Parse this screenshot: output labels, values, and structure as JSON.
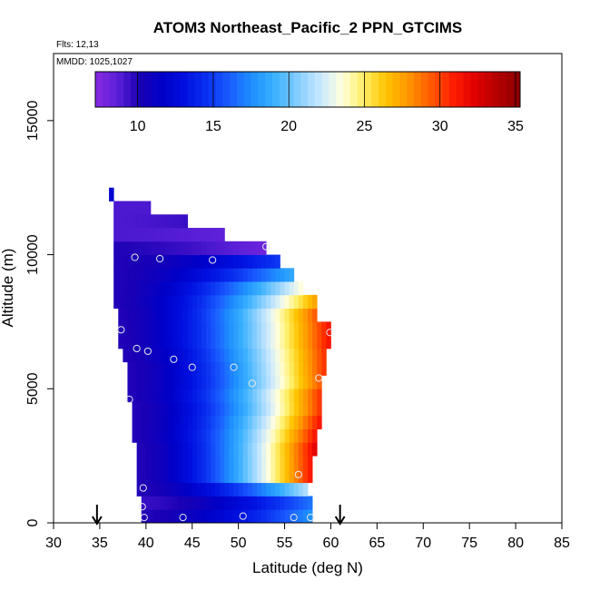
{
  "chart_data": {
    "type": "heatmap",
    "title": "ATOM3 Northeast_Pacific_2 PPN_GTCIMS",
    "flights_label": "Flts: 12,13",
    "dates_label": "MMDD: 1025,1027",
    "xlabel": "Latitude (deg N)",
    "ylabel": "Altitude (m)",
    "xlim": [
      30,
      85
    ],
    "ylim": [
      0,
      17500
    ],
    "xticks": [
      "30",
      "35",
      "40",
      "45",
      "50",
      "55",
      "60",
      "65",
      "70",
      "75",
      "80",
      "85"
    ],
    "yticks": [
      "0",
      "5000",
      "10000",
      "15000"
    ],
    "colorbar": {
      "min": 7.2,
      "max": 35.3,
      "ticks": [
        "10",
        "15",
        "20",
        "25",
        "30",
        "35"
      ],
      "colors": [
        "#8a2be2",
        "#5a1fd8",
        "#1a00b4",
        "#0000c8",
        "#0010e0",
        "#0a30f0",
        "#1a5cff",
        "#1e90ff",
        "#3ab0ff",
        "#80ccff",
        "#c4e6ff",
        "#ffffe0",
        "#ffee66",
        "#ffc400",
        "#ff9600",
        "#ff5a00",
        "#ff1e00",
        "#e00000",
        "#b40000",
        "#8b0000"
      ]
    },
    "arrows_lat": [
      34.7,
      61.0
    ],
    "layers": [
      {
        "z0": 0,
        "z1": 500,
        "lat0": 39.5,
        "lat1": 58.0,
        "v0": 10,
        "v1": 18
      },
      {
        "z0": 500,
        "z1": 1000,
        "lat0": 39.5,
        "lat1": 58.0,
        "v0": 9.5,
        "v1": 17
      },
      {
        "z0": 1000,
        "z1": 1500,
        "lat0": 39.0,
        "lat1": 57.5,
        "v0": 10,
        "v1": 22
      },
      {
        "z0": 1500,
        "z1": 2000,
        "lat0": 39.0,
        "lat1": 58.0,
        "v0": 10,
        "v1": 32
      },
      {
        "z0": 2000,
        "z1": 2500,
        "lat0": 39.0,
        "lat1": 58.0,
        "v0": 10,
        "v1": 32
      },
      {
        "z0": 2500,
        "z1": 3000,
        "lat0": 39.0,
        "lat1": 58.5,
        "v0": 10,
        "v1": 33
      },
      {
        "z0": 3000,
        "z1": 3500,
        "lat0": 38.5,
        "lat1": 58.5,
        "v0": 10,
        "v1": 32
      },
      {
        "z0": 3500,
        "z1": 4000,
        "lat0": 38.5,
        "lat1": 59.0,
        "v0": 10,
        "v1": 32
      },
      {
        "z0": 4000,
        "z1": 4500,
        "lat0": 38.5,
        "lat1": 59.0,
        "v0": 10,
        "v1": 31
      },
      {
        "z0": 4500,
        "z1": 5000,
        "lat0": 38.0,
        "lat1": 59.0,
        "v0": 10,
        "v1": 31
      },
      {
        "z0": 5000,
        "z1": 5500,
        "lat0": 38.0,
        "lat1": 59.0,
        "v0": 10,
        "v1": 30
      },
      {
        "z0": 5500,
        "z1": 6000,
        "lat0": 38.0,
        "lat1": 59.5,
        "v0": 10,
        "v1": 31
      },
      {
        "z0": 6000,
        "z1": 6500,
        "lat0": 37.5,
        "lat1": 59.5,
        "v0": 10,
        "v1": 31
      },
      {
        "z0": 6500,
        "z1": 7000,
        "lat0": 37.0,
        "lat1": 60.0,
        "v0": 10,
        "v1": 32
      },
      {
        "z0": 7000,
        "z1": 7500,
        "lat0": 37.0,
        "lat1": 60.0,
        "v0": 10,
        "v1": 32
      },
      {
        "z0": 7500,
        "z1": 8000,
        "lat0": 37.0,
        "lat1": 58.5,
        "v0": 10,
        "v1": 30
      },
      {
        "z0": 8000,
        "z1": 8500,
        "lat0": 36.5,
        "lat1": 58.5,
        "v0": 10,
        "v1": 28
      },
      {
        "z0": 8500,
        "z1": 9000,
        "lat0": 36.5,
        "lat1": 57.0,
        "v0": 10,
        "v1": 24
      },
      {
        "z0": 9000,
        "z1": 9500,
        "lat0": 36.5,
        "lat1": 56.0,
        "v0": 10,
        "v1": 19
      },
      {
        "z0": 9500,
        "z1": 10000,
        "lat0": 36.5,
        "lat1": 54.5,
        "v0": 10,
        "v1": 15
      },
      {
        "z0": 10000,
        "z1": 10500,
        "lat0": 36.5,
        "lat1": 53.0,
        "v0": 10,
        "v1": 8
      },
      {
        "z0": 10500,
        "z1": 11000,
        "lat0": 36.5,
        "lat1": 48.5,
        "v0": 9,
        "v1": 8.5
      },
      {
        "z0": 11000,
        "z1": 11500,
        "lat0": 36.5,
        "lat1": 44.5,
        "v0": 9,
        "v1": 9.5
      },
      {
        "z0": 11500,
        "z1": 12000,
        "lat0": 36.5,
        "lat1": 40.5,
        "v0": 9,
        "v1": 9
      },
      {
        "z0": 12000,
        "z1": 12500,
        "lat0": 36.0,
        "lat1": 36.5,
        "v0": 12,
        "v1": 12
      }
    ],
    "points": [
      {
        "lat": 39.8,
        "alt": 200
      },
      {
        "lat": 44.0,
        "alt": 200
      },
      {
        "lat": 50.5,
        "alt": 250
      },
      {
        "lat": 56.0,
        "alt": 200
      },
      {
        "lat": 57.8,
        "alt": 200
      },
      {
        "lat": 39.6,
        "alt": 600
      },
      {
        "lat": 39.7,
        "alt": 1300
      },
      {
        "lat": 56.5,
        "alt": 1800
      },
      {
        "lat": 38.2,
        "alt": 4600
      },
      {
        "lat": 51.5,
        "alt": 5200
      },
      {
        "lat": 58.7,
        "alt": 5400
      },
      {
        "lat": 45.0,
        "alt": 5800
      },
      {
        "lat": 49.5,
        "alt": 5800
      },
      {
        "lat": 43.0,
        "alt": 6100
      },
      {
        "lat": 39.0,
        "alt": 6500
      },
      {
        "lat": 40.2,
        "alt": 6400
      },
      {
        "lat": 37.3,
        "alt": 7200
      },
      {
        "lat": 59.9,
        "alt": 7100
      },
      {
        "lat": 38.8,
        "alt": 9900
      },
      {
        "lat": 41.5,
        "alt": 9850
      },
      {
        "lat": 47.2,
        "alt": 9800
      },
      {
        "lat": 53.0,
        "alt": 10300
      }
    ]
  }
}
